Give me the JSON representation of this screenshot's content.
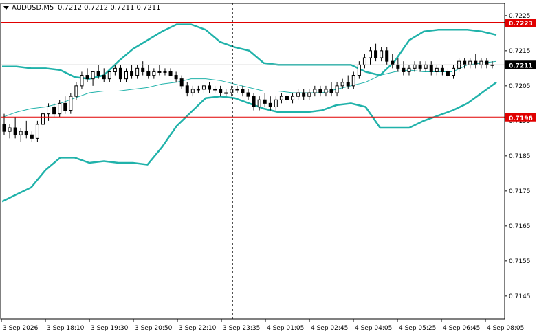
{
  "header": {
    "symbol": "AUDUSD,M5",
    "ohlc": "0.7212 0.7212 0.7211 0.7211"
  },
  "colors": {
    "background": "#ffffff",
    "axis": "#000000",
    "bollinger": "#20b2aa",
    "level_line": "#e00000",
    "current_price_badge": "#000000",
    "candle": "#000000"
  },
  "chart_data": {
    "type": "candlestick",
    "title": "",
    "xlabel": "",
    "ylabel": "",
    "ylim": [
      0.71385,
      0.72285
    ],
    "grid": false,
    "y_ticks": [
      "0.7225",
      "0.7215",
      "0.7205",
      "0.7195",
      "0.7185",
      "0.7175",
      "0.7165",
      "0.7155",
      "0.7145"
    ],
    "x_ticks": [
      "3 Sep 2026",
      "3 Sep 18:10",
      "3 Sep 19:30",
      "3 Sep 20:50",
      "3 Sep 22:10",
      "3 Sep 23:35",
      "4 Sep 01:05",
      "4 Sep 02:45",
      "4 Sep 04:05",
      "4 Sep 05:25",
      "4 Sep 06:45",
      "4 Sep 08:05"
    ],
    "levels": [
      {
        "label": "0.7223",
        "value": 0.7223
      },
      {
        "label": "0.7196",
        "value": 0.7196
      }
    ],
    "current_price": {
      "label": "0.7211",
      "value": 0.7211
    },
    "crosshair_x_fraction": 0.46,
    "bands": {
      "upper": [
        0.72105,
        0.72105,
        0.721,
        0.721,
        0.72095,
        0.72075,
        0.7207,
        0.7208,
        0.7212,
        0.72155,
        0.7218,
        0.72205,
        0.72225,
        0.72225,
        0.7221,
        0.72175,
        0.7216,
        0.7215,
        0.72115,
        0.7211,
        0.7211,
        0.7211,
        0.7211,
        0.7211,
        0.7211,
        0.7209,
        0.7208,
        0.7212,
        0.7218,
        0.72205,
        0.7221,
        0.7221,
        0.7221,
        0.72205,
        0.72195
      ],
      "middle": [
        0.7196,
        0.71975,
        0.71985,
        0.7199,
        0.72,
        0.72015,
        0.7203,
        0.72035,
        0.72035,
        0.7204,
        0.72045,
        0.72055,
        0.7206,
        0.7207,
        0.7207,
        0.72065,
        0.72055,
        0.72045,
        0.72035,
        0.72035,
        0.7203,
        0.7203,
        0.7203,
        0.7204,
        0.7205,
        0.7206,
        0.7208,
        0.7209,
        0.72095,
        0.7209,
        0.7209,
        0.7209,
        0.7211,
        0.72115,
        0.7212
      ],
      "lower": [
        0.7172,
        0.7174,
        0.7176,
        0.7181,
        0.71845,
        0.71845,
        0.7183,
        0.71835,
        0.7183,
        0.7183,
        0.71825,
        0.71875,
        0.71935,
        0.71975,
        0.72015,
        0.7202,
        0.72015,
        0.72,
        0.71985,
        0.71975,
        0.71975,
        0.71975,
        0.7198,
        0.71995,
        0.72,
        0.7199,
        0.7193,
        0.7193,
        0.7193,
        0.7195,
        0.71965,
        0.7198,
        0.72,
        0.7203,
        0.7206
      ]
    },
    "candles": [
      [
        0.7194,
        0.7197,
        0.7191,
        0.7192
      ],
      [
        0.7192,
        0.7194,
        0.719,
        0.7193
      ],
      [
        0.7193,
        0.7196,
        0.719,
        0.7191
      ],
      [
        0.7191,
        0.7193,
        0.7189,
        0.7192
      ],
      [
        0.7192,
        0.7195,
        0.719,
        0.7191
      ],
      [
        0.7191,
        0.7192,
        0.7189,
        0.719
      ],
      [
        0.719,
        0.7195,
        0.7189,
        0.7194
      ],
      [
        0.7194,
        0.7198,
        0.7193,
        0.7197
      ],
      [
        0.7197,
        0.72,
        0.7195,
        0.7199
      ],
      [
        0.7199,
        0.72,
        0.7196,
        0.7197
      ],
      [
        0.7197,
        0.7201,
        0.7196,
        0.72
      ],
      [
        0.72,
        0.7202,
        0.7197,
        0.7198
      ],
      [
        0.7198,
        0.7203,
        0.7197,
        0.7202
      ],
      [
        0.7202,
        0.7206,
        0.7201,
        0.7205
      ],
      [
        0.7205,
        0.7209,
        0.7204,
        0.7208
      ],
      [
        0.7208,
        0.721,
        0.7206,
        0.7207
      ],
      [
        0.7207,
        0.7209,
        0.7205,
        0.7209
      ],
      [
        0.7209,
        0.7211,
        0.7207,
        0.7208
      ],
      [
        0.7208,
        0.721,
        0.7206,
        0.7207
      ],
      [
        0.7207,
        0.7209,
        0.7206,
        0.7209
      ],
      [
        0.7209,
        0.7211,
        0.7208,
        0.721
      ],
      [
        0.721,
        0.7211,
        0.7206,
        0.7207
      ],
      [
        0.7207,
        0.721,
        0.7206,
        0.7209
      ],
      [
        0.7209,
        0.7211,
        0.7207,
        0.7208
      ],
      [
        0.7208,
        0.7211,
        0.7207,
        0.721
      ],
      [
        0.721,
        0.7212,
        0.7208,
        0.7209
      ],
      [
        0.7209,
        0.7211,
        0.7207,
        0.7208
      ],
      [
        0.7208,
        0.721,
        0.7207,
        0.7209
      ],
      [
        0.7209,
        0.7211,
        0.7208,
        0.7209
      ],
      [
        0.7209,
        0.721,
        0.7208,
        0.7209
      ],
      [
        0.7209,
        0.721,
        0.7208,
        0.7208
      ],
      [
        0.7208,
        0.7209,
        0.7206,
        0.7207
      ],
      [
        0.7207,
        0.7208,
        0.7204,
        0.7205
      ],
      [
        0.7205,
        0.7206,
        0.7202,
        0.7203
      ],
      [
        0.7203,
        0.7205,
        0.7202,
        0.7204
      ],
      [
        0.7204,
        0.7205,
        0.7203,
        0.7204
      ],
      [
        0.7204,
        0.7205,
        0.7203,
        0.7205
      ],
      [
        0.7205,
        0.7206,
        0.7203,
        0.7204
      ],
      [
        0.7204,
        0.7205,
        0.7203,
        0.7204
      ],
      [
        0.7204,
        0.7205,
        0.7202,
        0.7203
      ],
      [
        0.7203,
        0.7204,
        0.7202,
        0.7203
      ],
      [
        0.7203,
        0.7205,
        0.7202,
        0.7204
      ],
      [
        0.7204,
        0.7205,
        0.7203,
        0.7204
      ],
      [
        0.7204,
        0.7205,
        0.7202,
        0.7203
      ],
      [
        0.7203,
        0.7204,
        0.7201,
        0.7202
      ],
      [
        0.7202,
        0.7203,
        0.7198,
        0.7199
      ],
      [
        0.7199,
        0.7202,
        0.7198,
        0.7201
      ],
      [
        0.7201,
        0.7203,
        0.7199,
        0.72
      ],
      [
        0.72,
        0.7202,
        0.7198,
        0.7199
      ],
      [
        0.7199,
        0.7202,
        0.7198,
        0.7201
      ],
      [
        0.7201,
        0.7203,
        0.72,
        0.7202
      ],
      [
        0.7202,
        0.7203,
        0.72,
        0.7201
      ],
      [
        0.7201,
        0.7203,
        0.72,
        0.7202
      ],
      [
        0.7202,
        0.7204,
        0.7201,
        0.7203
      ],
      [
        0.7203,
        0.7204,
        0.7201,
        0.7202
      ],
      [
        0.7202,
        0.7204,
        0.7201,
        0.7203
      ],
      [
        0.7203,
        0.7205,
        0.7202,
        0.7204
      ],
      [
        0.7204,
        0.7205,
        0.7202,
        0.7203
      ],
      [
        0.7203,
        0.7205,
        0.7202,
        0.7204
      ],
      [
        0.7204,
        0.7206,
        0.7202,
        0.7203
      ],
      [
        0.7203,
        0.7206,
        0.7202,
        0.7205
      ],
      [
        0.7205,
        0.7207,
        0.7204,
        0.7206
      ],
      [
        0.7206,
        0.7208,
        0.7204,
        0.7205
      ],
      [
        0.7205,
        0.7209,
        0.7204,
        0.7208
      ],
      [
        0.7208,
        0.7212,
        0.7207,
        0.7211
      ],
      [
        0.7211,
        0.7214,
        0.721,
        0.7213
      ],
      [
        0.7213,
        0.7216,
        0.7211,
        0.7215
      ],
      [
        0.7215,
        0.7217,
        0.7212,
        0.7213
      ],
      [
        0.7213,
        0.7216,
        0.7212,
        0.7215
      ],
      [
        0.7215,
        0.7216,
        0.7211,
        0.7212
      ],
      [
        0.7212,
        0.7214,
        0.721,
        0.7211
      ],
      [
        0.7211,
        0.7213,
        0.7209,
        0.721
      ],
      [
        0.721,
        0.7212,
        0.7208,
        0.7209
      ],
      [
        0.7209,
        0.7211,
        0.7208,
        0.721
      ],
      [
        0.721,
        0.7212,
        0.7209,
        0.7211
      ],
      [
        0.7211,
        0.7212,
        0.7209,
        0.721
      ],
      [
        0.721,
        0.7212,
        0.7209,
        0.7211
      ],
      [
        0.7211,
        0.7212,
        0.7208,
        0.7209
      ],
      [
        0.7209,
        0.7211,
        0.7208,
        0.721
      ],
      [
        0.721,
        0.7211,
        0.7208,
        0.7209
      ],
      [
        0.7209,
        0.721,
        0.7207,
        0.7208
      ],
      [
        0.7208,
        0.7211,
        0.7207,
        0.721
      ],
      [
        0.721,
        0.7213,
        0.7209,
        0.7212
      ],
      [
        0.7212,
        0.7213,
        0.721,
        0.7211
      ],
      [
        0.7211,
        0.7213,
        0.721,
        0.7212
      ],
      [
        0.7212,
        0.7214,
        0.721,
        0.7211
      ],
      [
        0.7211,
        0.7213,
        0.721,
        0.7212
      ],
      [
        0.7212,
        0.7213,
        0.721,
        0.7211
      ],
      [
        0.7211,
        0.7212,
        0.721,
        0.7211
      ]
    ]
  }
}
